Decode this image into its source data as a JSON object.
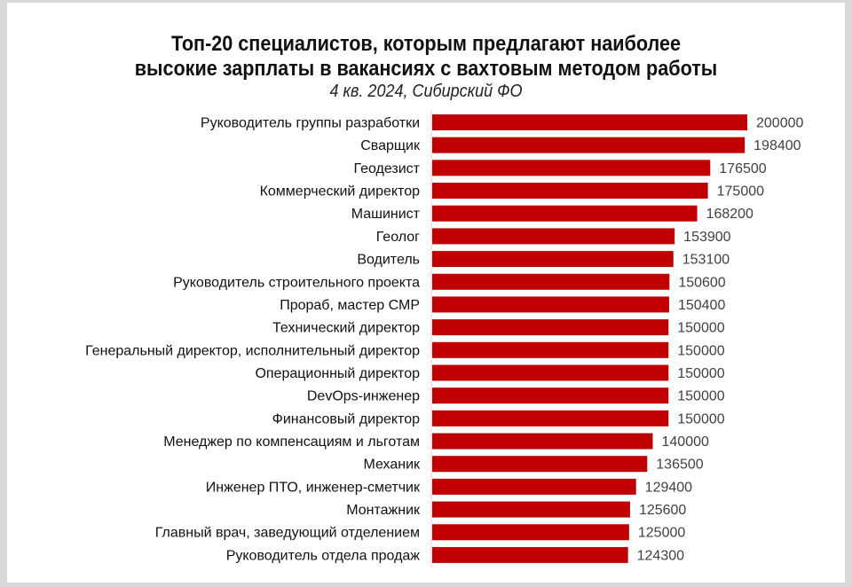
{
  "chart_data": {
    "type": "bar",
    "orientation": "horizontal",
    "title": "Топ-20 специалистов, которым предлагают наиболее высокие зарплаты в вакансиях с вахтовым методом работы",
    "title_lines": [
      "Топ-20 специалистов, которым предлагают наиболее",
      "высокие зарплаты в вакансиях с вахтовым методом работы"
    ],
    "subtitle": "4 кв. 2024, Сибирский ФО",
    "categories": [
      "Руководитель группы разработки",
      "Сварщик",
      "Геодезист",
      "Коммерческий директор",
      "Машинист",
      "Геолог",
      "Водитель",
      "Руководитель строительного проекта",
      "Прораб, мастер СМР",
      "Технический директор",
      "Генеральный директор, исполнительный директор",
      "Операционный директор",
      "DevOps-инженер",
      "Финансовый директор",
      "Менеджер по компенсациям и льготам",
      "Механик",
      "Инженер ПТО, инженер-сметчик",
      "Монтажник",
      "Главный врач, заведующий отделением",
      "Руководитель отдела продаж"
    ],
    "values": [
      200000,
      198400,
      176500,
      175000,
      168200,
      153900,
      153100,
      150600,
      150400,
      150000,
      150000,
      150000,
      150000,
      150000,
      140000,
      136500,
      129400,
      125600,
      125000,
      124300
    ],
    "xlim": [
      0,
      200000
    ],
    "grid": false,
    "data_labels": true,
    "bar_color": "#c00000"
  }
}
